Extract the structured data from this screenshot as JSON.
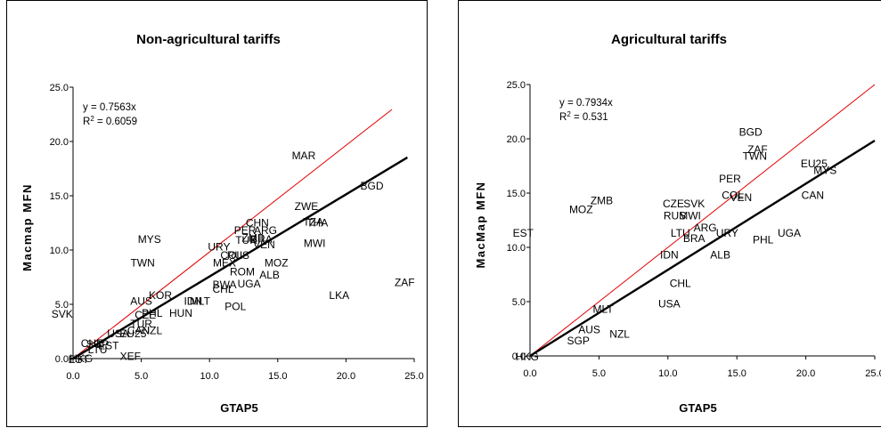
{
  "chart_data": [
    {
      "type": "scatter",
      "title": "Non-agricultural tariffs",
      "xlabel": "GTAP5",
      "ylabel": "Macmap MFN",
      "xlim": [
        0,
        25
      ],
      "ylim": [
        0,
        25
      ],
      "x_ticks": [
        "0.0",
        "5.0",
        "10.0",
        "15.0",
        "20.0",
        "25.0"
      ],
      "y_ticks": [
        "0.0",
        "5.0",
        "10.0",
        "15.0",
        "20.0",
        "25.0"
      ],
      "grid": false,
      "trendline_equation": "y = 0.7563x",
      "r_squared_prefix": "R",
      "r_squared_value": " = 0.6059",
      "trendline_slope": 0.7563,
      "diagonal_slope": 1,
      "points": [
        {
          "label": "MAR",
          "x": 16.9,
          "y": 18.7
        },
        {
          "label": "BGD",
          "x": 21.9,
          "y": 15.9
        },
        {
          "label": "ZWE",
          "x": 17.1,
          "y": 14.0
        },
        {
          "label": "CHN",
          "x": 13.5,
          "y": 12.5
        },
        {
          "label": "TZA",
          "x": 17.6,
          "y": 12.6
        },
        {
          "label": "THA",
          "x": 17.9,
          "y": 12.5
        },
        {
          "label": "PER",
          "x": 12.6,
          "y": 11.8
        },
        {
          "label": "ARG",
          "x": 14.1,
          "y": 11.8
        },
        {
          "label": "ZMB",
          "x": 13.2,
          "y": 11.1
        },
        {
          "label": "BRA",
          "x": 13.8,
          "y": 11.0
        },
        {
          "label": "TUR",
          "x": 12.7,
          "y": 10.9
        },
        {
          "label": "VEN",
          "x": 14.0,
          "y": 10.5
        },
        {
          "label": "MYS",
          "x": 5.6,
          "y": 11.0
        },
        {
          "label": "MWI",
          "x": 17.7,
          "y": 10.6
        },
        {
          "label": "URY",
          "x": 10.7,
          "y": 10.3
        },
        {
          "label": "COL",
          "x": 11.6,
          "y": 9.5
        },
        {
          "label": "RUS",
          "x": 12.1,
          "y": 9.5
        },
        {
          "label": "TWN",
          "x": 5.1,
          "y": 8.8
        },
        {
          "label": "MEX",
          "x": 11.1,
          "y": 8.8
        },
        {
          "label": "MOZ",
          "x": 14.9,
          "y": 8.8
        },
        {
          "label": "ROM",
          "x": 12.4,
          "y": 8.0
        },
        {
          "label": "ALB",
          "x": 14.4,
          "y": 7.7
        },
        {
          "label": "UGA",
          "x": 12.9,
          "y": 6.9
        },
        {
          "label": "BWA",
          "x": 11.1,
          "y": 6.8
        },
        {
          "label": "CHL",
          "x": 11.0,
          "y": 6.4
        },
        {
          "label": "ZAF",
          "x": 24.3,
          "y": 7.0
        },
        {
          "label": "LKA",
          "x": 19.5,
          "y": 5.8
        },
        {
          "label": "KOR",
          "x": 6.4,
          "y": 5.8
        },
        {
          "label": "AUS",
          "x": 5.0,
          "y": 5.3
        },
        {
          "label": "IDN",
          "x": 8.8,
          "y": 5.3
        },
        {
          "label": "MLT",
          "x": 9.3,
          "y": 5.3
        },
        {
          "label": "POL",
          "x": 11.9,
          "y": 4.8
        },
        {
          "label": "SVK",
          "x": -0.8,
          "y": 4.1
        },
        {
          "label": "HUN",
          "x": 7.9,
          "y": 4.2
        },
        {
          "label": "PHL",
          "x": 5.8,
          "y": 4.2
        },
        {
          "label": "CZE",
          "x": 5.3,
          "y": 4.0
        },
        {
          "label": "NZL",
          "x": 5.8,
          "y": 2.6
        },
        {
          "label": "TUR",
          "x": 5.0,
          "y": 3.2
        },
        {
          "label": "CAN",
          "x": 4.8,
          "y": 2.6
        },
        {
          "label": "USA",
          "x": 3.3,
          "y": 2.3
        },
        {
          "label": "EU25",
          "x": 4.4,
          "y": 2.3
        },
        {
          "label": "CHE",
          "x": 1.4,
          "y": 1.4
        },
        {
          "label": "SGP",
          "x": 1.8,
          "y": 1.3
        },
        {
          "label": "EST",
          "x": 2.6,
          "y": 1.2
        },
        {
          "label": "LTU",
          "x": 1.8,
          "y": 0.8
        },
        {
          "label": "XEF",
          "x": 4.2,
          "y": 0.2
        },
        {
          "label": "HKG",
          "x": 0.6,
          "y": 0.0
        },
        {
          "label": "EST",
          "x": 0.4,
          "y": -0.1
        }
      ]
    },
    {
      "type": "scatter",
      "title": "Agricultural tariffs",
      "xlabel": "GTAP5",
      "ylabel": "MacMap MFN",
      "xlim": [
        0,
        25
      ],
      "ylim": [
        0,
        25
      ],
      "x_ticks": [
        "0.0",
        "5.0",
        "10.0",
        "15.0",
        "20.0",
        "25.0"
      ],
      "y_ticks": [
        "0.0",
        "5.0",
        "10.0",
        "15.0",
        "20.0",
        "25.0"
      ],
      "grid": false,
      "trendline_equation": "y = 0.7934x",
      "r_squared_prefix": "R",
      "r_squared_value": " = 0.531",
      "trendline_slope": 0.7934,
      "diagonal_slope": 1,
      "points": [
        {
          "label": "BGD",
          "x": 16.0,
          "y": 20.6
        },
        {
          "label": "ZAF",
          "x": 16.5,
          "y": 19.0
        },
        {
          "label": "TWN",
          "x": 16.3,
          "y": 18.4
        },
        {
          "label": "EU25",
          "x": 20.6,
          "y": 17.7
        },
        {
          "label": "MYS",
          "x": 21.4,
          "y": 17.1
        },
        {
          "label": "PER",
          "x": 14.5,
          "y": 16.3
        },
        {
          "label": "COL",
          "x": 14.7,
          "y": 14.8
        },
        {
          "label": "VEN",
          "x": 15.3,
          "y": 14.6
        },
        {
          "label": "CAN",
          "x": 20.5,
          "y": 14.8
        },
        {
          "label": "ZMB",
          "x": 5.2,
          "y": 14.3
        },
        {
          "label": "CZE",
          "x": 10.4,
          "y": 14.0
        },
        {
          "label": "SVK",
          "x": 11.9,
          "y": 14.0
        },
        {
          "label": "MOZ",
          "x": 3.7,
          "y": 13.5
        },
        {
          "label": "RUS",
          "x": 10.5,
          "y": 12.9
        },
        {
          "label": "MWI",
          "x": 11.6,
          "y": 12.9
        },
        {
          "label": "EST",
          "x": -0.5,
          "y": 11.3
        },
        {
          "label": "ARG",
          "x": 12.7,
          "y": 11.8
        },
        {
          "label": "LTU",
          "x": 10.9,
          "y": 11.3
        },
        {
          "label": "URY",
          "x": 14.3,
          "y": 11.3
        },
        {
          "label": "BRA",
          "x": 11.9,
          "y": 10.8
        },
        {
          "label": "UGA",
          "x": 18.8,
          "y": 11.3
        },
        {
          "label": "PHL",
          "x": 16.9,
          "y": 10.7
        },
        {
          "label": "IDN",
          "x": 10.1,
          "y": 9.3
        },
        {
          "label": "ALB",
          "x": 13.8,
          "y": 9.3
        },
        {
          "label": "CHL",
          "x": 10.9,
          "y": 6.7
        },
        {
          "label": "USA",
          "x": 10.1,
          "y": 4.8
        },
        {
          "label": "MLT",
          "x": 5.3,
          "y": 4.3
        },
        {
          "label": "AUS",
          "x": 4.3,
          "y": 2.4
        },
        {
          "label": "NZL",
          "x": 6.5,
          "y": 2.0
        },
        {
          "label": "SGP",
          "x": 3.5,
          "y": 1.4
        },
        {
          "label": "HKG",
          "x": -0.2,
          "y": -0.1
        }
      ]
    }
  ]
}
